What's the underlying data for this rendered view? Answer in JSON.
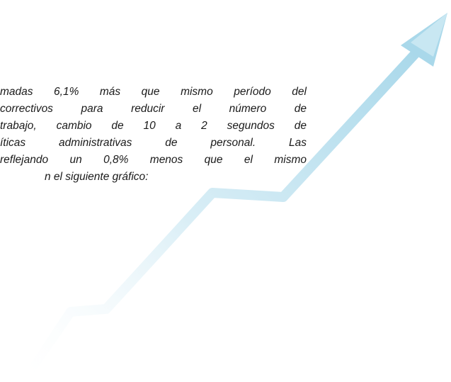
{
  "paragraph": {
    "lines": [
      "madas 6,1% más que mismo período del",
      "correctivos para reducir el número de",
      "trabajo, cambio de 10 a 2 segundos de",
      "íticas administrativas de personal. Las",
      "reflejando un 0,8% menos que el mismo",
      "n el siguiente gráfico:"
    ]
  }
}
